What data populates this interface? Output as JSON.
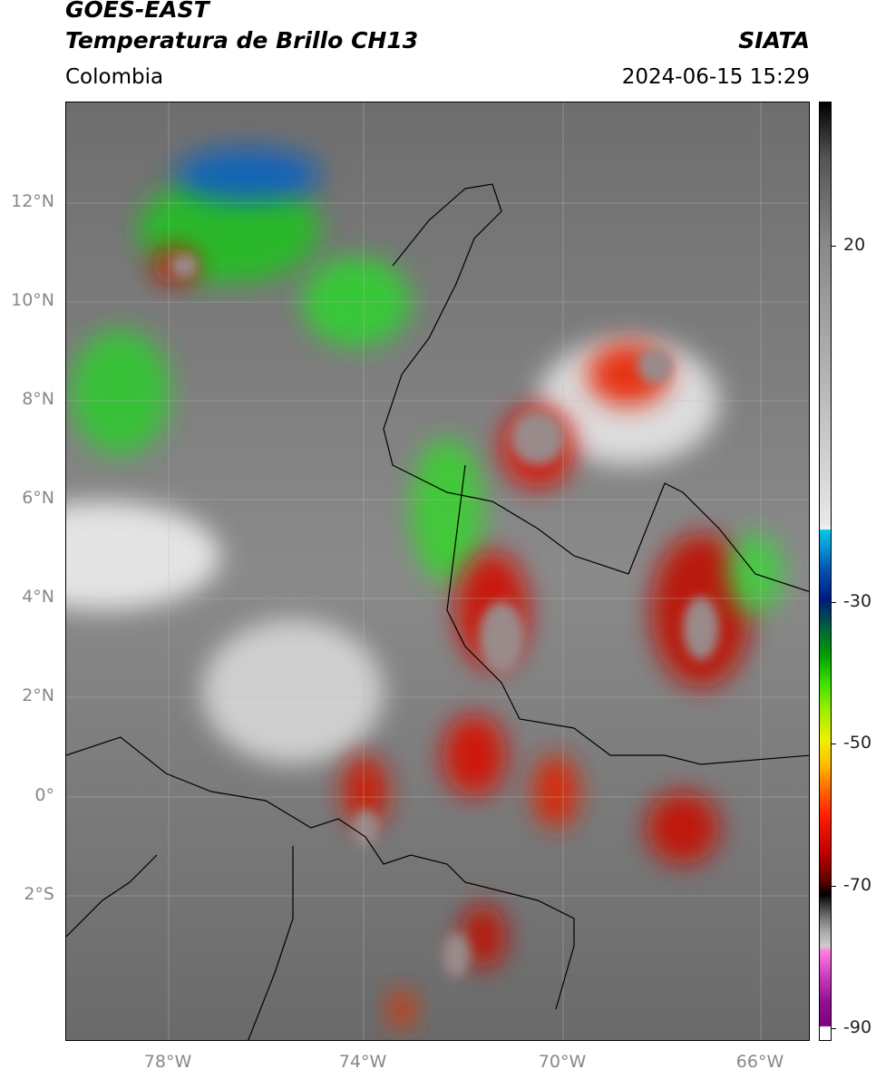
{
  "header": {
    "title": "GOES-EAST",
    "subtitle": "Temperatura de Brillo CH13",
    "source": "SIATA",
    "region": "Colombia",
    "timestamp": "2024-06-15 15:29"
  },
  "map": {
    "lon_ticks": [
      "78°W",
      "74°W",
      "70°W",
      "66°W"
    ],
    "lat_ticks": [
      "12°N",
      "10°N",
      "8°N",
      "6°N",
      "4°N",
      "2°N",
      "0°",
      "2°S"
    ]
  },
  "colorbar": {
    "ticks": [
      "20",
      "-30",
      "-50",
      "-70",
      "-90"
    ]
  }
}
